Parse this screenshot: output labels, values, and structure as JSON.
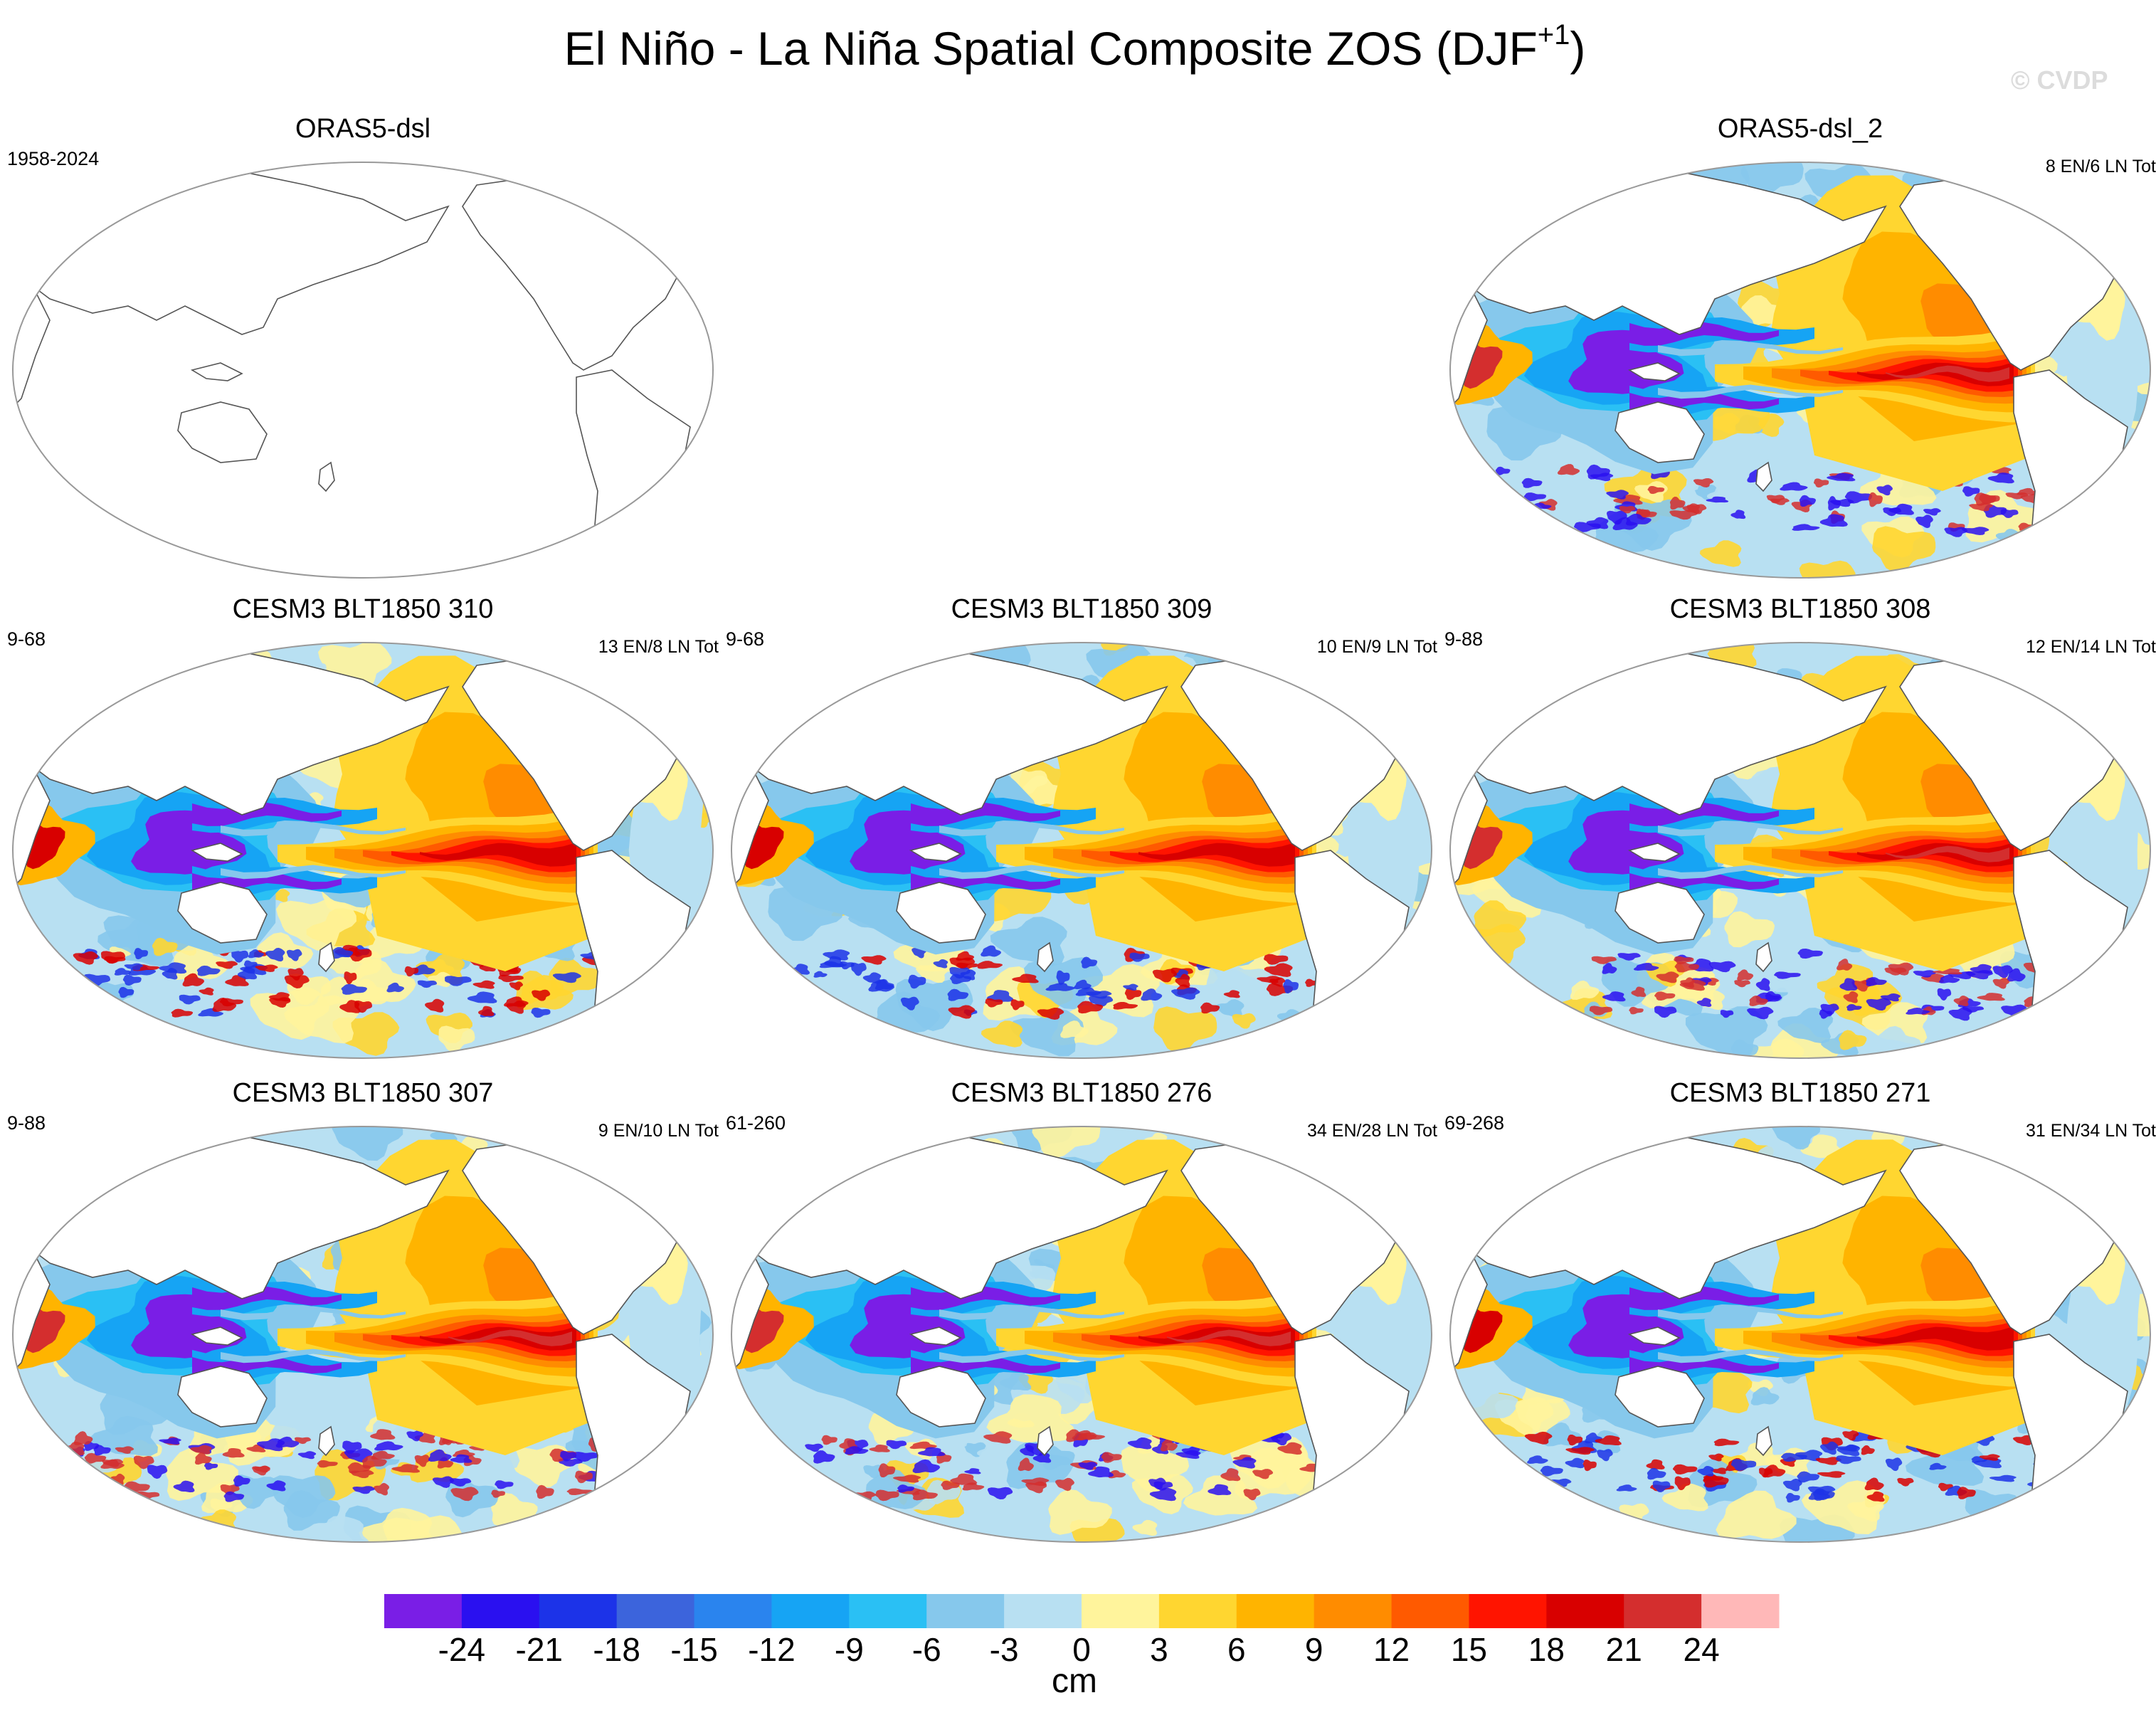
{
  "title": "El Niño - La Niña Spatial Composite ZOS (DJF",
  "title_sup": "+1",
  "title_close": ")",
  "watermark": "© CVDP",
  "colors": {
    "land": "#ffffff",
    "coast": "#555555",
    "map_outline": "#999999"
  },
  "chart_data": {
    "type": "heatmap",
    "projection": "Robinson, Pacific-centered",
    "panels": [
      {
        "name": "ORAS5-dsl",
        "years": "1958-2024",
        "counts": "",
        "has_data": false,
        "strength": 0
      },
      {
        "name": "ORAS5-dsl_2",
        "years": "",
        "counts": "8 EN/6 LN Tot",
        "has_data": true,
        "strength": 1.0
      },
      {
        "name": "CESM3 BLT1850 310",
        "years": "9-68",
        "counts": "13 EN/8 LN Tot",
        "has_data": true,
        "strength": 0.85
      },
      {
        "name": "CESM3 BLT1850 309",
        "years": "9-68",
        "counts": "10 EN/9 LN Tot",
        "has_data": true,
        "strength": 0.8
      },
      {
        "name": "CESM3 BLT1850 308",
        "years": "9-88",
        "counts": "12 EN/14 LN Tot",
        "has_data": true,
        "strength": 0.95
      },
      {
        "name": "CESM3 BLT1850 307",
        "years": "9-88",
        "counts": "9 EN/10 LN Tot",
        "has_data": true,
        "strength": 0.95
      },
      {
        "name": "CESM3 BLT1850 276",
        "years": "61-260",
        "counts": "34 EN/28 LN Tot",
        "has_data": true,
        "strength": 0.9
      },
      {
        "name": "CESM3 BLT1850 271",
        "years": "69-268",
        "counts": "31 EN/34 LN Tot",
        "has_data": true,
        "strength": 0.85
      }
    ],
    "colorbar": {
      "units": "cm",
      "tick_labels": [
        "-24",
        "-21",
        "-18",
        "-15",
        "-12",
        "-9",
        "-6",
        "-3",
        "0",
        "3",
        "6",
        "9",
        "12",
        "15",
        "18",
        "21",
        "24"
      ],
      "colors": [
        "#7a1ee6",
        "#2a10f0",
        "#1c33e8",
        "#3c64dc",
        "#2a84ee",
        "#16a4f4",
        "#2ac0f4",
        "#86c8ec",
        "#b8e0f2",
        "#fff49c",
        "#ffd630",
        "#ffb400",
        "#ff8c00",
        "#ff5a00",
        "#ff1400",
        "#d80000",
        "#d42e2e",
        "#ffb8b8"
      ]
    }
  }
}
